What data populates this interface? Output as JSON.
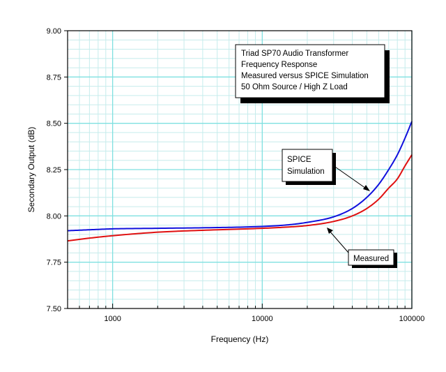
{
  "chart_data": {
    "type": "line",
    "title": "",
    "xlabel": "Frequency (Hz)",
    "ylabel": "Secondary Output (dB)",
    "x_scale": "log",
    "xlim": [
      500,
      100000
    ],
    "ylim": [
      7.5,
      9.0
    ],
    "x_ticks": [
      1000,
      10000,
      100000
    ],
    "x_tick_labels": [
      "1000",
      "10000",
      "100000"
    ],
    "y_ticks": [
      7.5,
      7.75,
      8.0,
      8.25,
      8.5,
      8.75,
      9.0
    ],
    "y_tick_labels": [
      "7.50",
      "7.75",
      "8.00",
      "8.25",
      "8.50",
      "8.75",
      "9.00"
    ],
    "grid": true,
    "legend_box": {
      "lines": [
        "Triad SP70 Audio Transformer",
        "Frequency Response",
        "Measured versus SPICE Simulation",
        "50 Ohm Source / High Z Load"
      ]
    },
    "annotations": [
      {
        "series": "SPICE Simulation",
        "lines": [
          "SPICE",
          "Simulation"
        ]
      },
      {
        "series": "Measured",
        "lines": [
          "Measured"
        ]
      }
    ],
    "series": [
      {
        "name": "SPICE Simulation",
        "color": "#1010dd",
        "x": [
          500,
          700,
          1000,
          2000,
          5000,
          10000,
          15000,
          20000,
          30000,
          40000,
          50000,
          60000,
          70000,
          80000,
          90000,
          100000
        ],
        "y": [
          7.92,
          7.925,
          7.93,
          7.933,
          7.937,
          7.943,
          7.952,
          7.965,
          7.995,
          8.04,
          8.1,
          8.17,
          8.25,
          8.33,
          8.42,
          8.51
        ]
      },
      {
        "name": "Measured",
        "color": "#e01010",
        "x": [
          500,
          700,
          1000,
          2000,
          5000,
          10000,
          15000,
          20000,
          30000,
          40000,
          50000,
          60000,
          70000,
          80000,
          90000,
          100000
        ],
        "y": [
          7.865,
          7.88,
          7.893,
          7.912,
          7.925,
          7.933,
          7.94,
          7.948,
          7.97,
          8.0,
          8.04,
          8.09,
          8.15,
          8.2,
          8.27,
          8.33
        ]
      }
    ]
  }
}
